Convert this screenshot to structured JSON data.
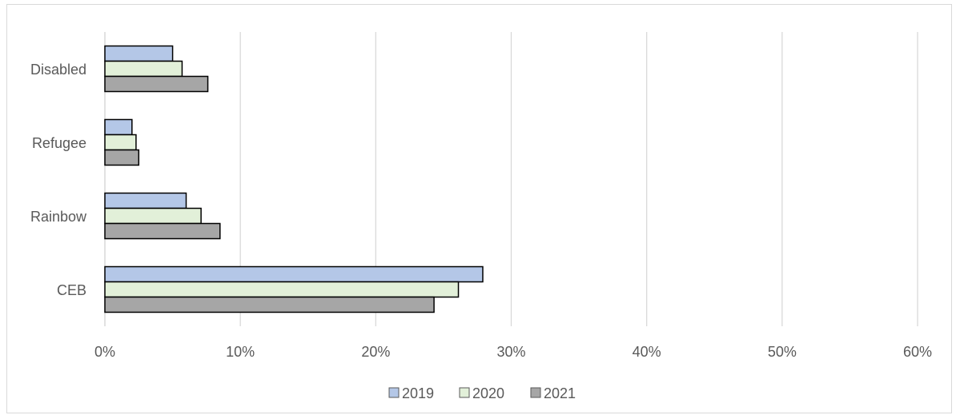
{
  "page": {
    "title_fragment": ""
  },
  "chart_data": {
    "type": "bar",
    "orientation": "horizontal",
    "categories": [
      "Disabled",
      "Refugee",
      "Rainbow",
      "CEB"
    ],
    "series": [
      {
        "name": "2019",
        "color": "#b4c7e7",
        "values": [
          5.0,
          2.0,
          6.0,
          27.9
        ]
      },
      {
        "name": "2020",
        "color": "#e2f0d9",
        "values": [
          5.7,
          2.3,
          7.1,
          26.1
        ]
      },
      {
        "name": "2021",
        "color": "#a6a6a6",
        "values": [
          7.6,
          2.5,
          8.5,
          24.3
        ]
      }
    ],
    "x_ticks": [
      "0%",
      "10%",
      "20%",
      "30%",
      "40%",
      "50%",
      "60%"
    ],
    "xlim": [
      0,
      60
    ],
    "x_unit": "%",
    "grid": true,
    "legend_position": "bottom",
    "title": "",
    "xlabel": "",
    "ylabel": ""
  }
}
